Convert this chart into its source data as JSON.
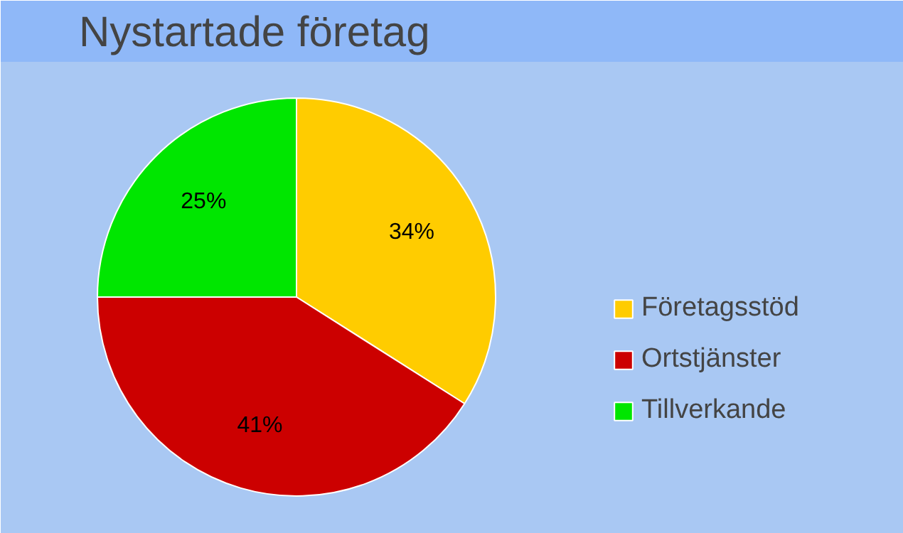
{
  "chart_data": {
    "type": "pie",
    "title": "Nystartade företag",
    "categories": [
      "Företagsstöd",
      "Ortstjänster",
      "Tillverkande"
    ],
    "values": [
      34,
      41,
      25
    ],
    "colors": [
      "#ffcc00",
      "#cc0000",
      "#00e600"
    ],
    "value_labels": [
      "34%",
      "41%",
      "25%"
    ],
    "legend": "right"
  }
}
